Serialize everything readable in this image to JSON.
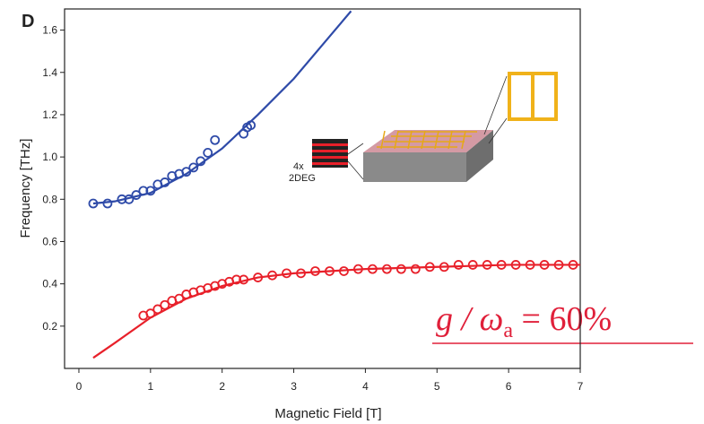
{
  "chart_data": {
    "type": "scatter",
    "panel_label": "D",
    "x_label": "Magnetic Field [T]",
    "y_label": "Frequency [THz]",
    "xlim": [
      -0.2,
      7
    ],
    "ylim": [
      0,
      1.7
    ],
    "xticks": [
      0,
      1,
      2,
      3,
      4,
      5,
      6,
      7
    ],
    "yticks": [
      0.2,
      0.4,
      0.6,
      0.8,
      {
        "value": 1,
        "label": "1.0"
      },
      1.2,
      1.4,
      1.6
    ],
    "series": [
      {
        "style": "line",
        "color": "#2e4aa8",
        "x": [
          0.2,
          0.5,
          1.0,
          1.5,
          2.0,
          2.5,
          3.0,
          3.5,
          3.8
        ],
        "values": [
          0.78,
          0.79,
          0.83,
          0.92,
          1.04,
          1.2,
          1.37,
          1.57,
          1.69
        ]
      },
      {
        "style": "line",
        "color": "#e8202a",
        "x": [
          0.2,
          0.5,
          1.0,
          1.5,
          2.0,
          2.5,
          3.0,
          4.0,
          5.0,
          6.0,
          7.0
        ],
        "values": [
          0.05,
          0.12,
          0.24,
          0.33,
          0.39,
          0.43,
          0.45,
          0.47,
          0.48,
          0.49,
          0.49
        ]
      },
      {
        "style": "markers",
        "color": "#2e4aa8",
        "x": [
          0.2,
          0.4,
          0.6,
          0.7,
          0.8,
          0.9,
          1.0,
          1.1,
          1.2,
          1.3,
          1.4,
          1.5,
          1.6,
          1.7,
          1.8,
          1.9,
          2.3,
          2.35,
          2.4
        ],
        "values": [
          0.78,
          0.78,
          0.8,
          0.8,
          0.82,
          0.84,
          0.84,
          0.87,
          0.88,
          0.91,
          0.92,
          0.93,
          0.95,
          0.98,
          1.02,
          1.08,
          1.11,
          1.14,
          1.15
        ]
      },
      {
        "style": "markers",
        "color": "#e8202a",
        "x": [
          0.9,
          1.0,
          1.1,
          1.2,
          1.3,
          1.4,
          1.5,
          1.6,
          1.7,
          1.8,
          1.9,
          2.0,
          2.1,
          2.2,
          2.3,
          2.5,
          2.7,
          2.9,
          3.1,
          3.3,
          3.5,
          3.7,
          3.9,
          4.1,
          4.3,
          4.5,
          4.7,
          4.9,
          5.1,
          5.3,
          5.5,
          5.7,
          5.9,
          6.1,
          6.3,
          6.5,
          6.7,
          6.9
        ],
        "values": [
          0.25,
          0.26,
          0.28,
          0.3,
          0.32,
          0.33,
          0.35,
          0.36,
          0.37,
          0.38,
          0.39,
          0.4,
          0.41,
          0.42,
          0.42,
          0.43,
          0.44,
          0.45,
          0.45,
          0.46,
          0.46,
          0.46,
          0.47,
          0.47,
          0.47,
          0.47,
          0.47,
          0.48,
          0.48,
          0.49,
          0.49,
          0.49,
          0.49,
          0.49,
          0.49,
          0.49,
          0.49,
          0.49
        ]
      }
    ],
    "inset": {
      "layers": "4x",
      "material": "2DEG"
    },
    "annotation": {
      "text": "g / ω",
      "subscript": "a",
      "rest": " = 60%"
    }
  }
}
